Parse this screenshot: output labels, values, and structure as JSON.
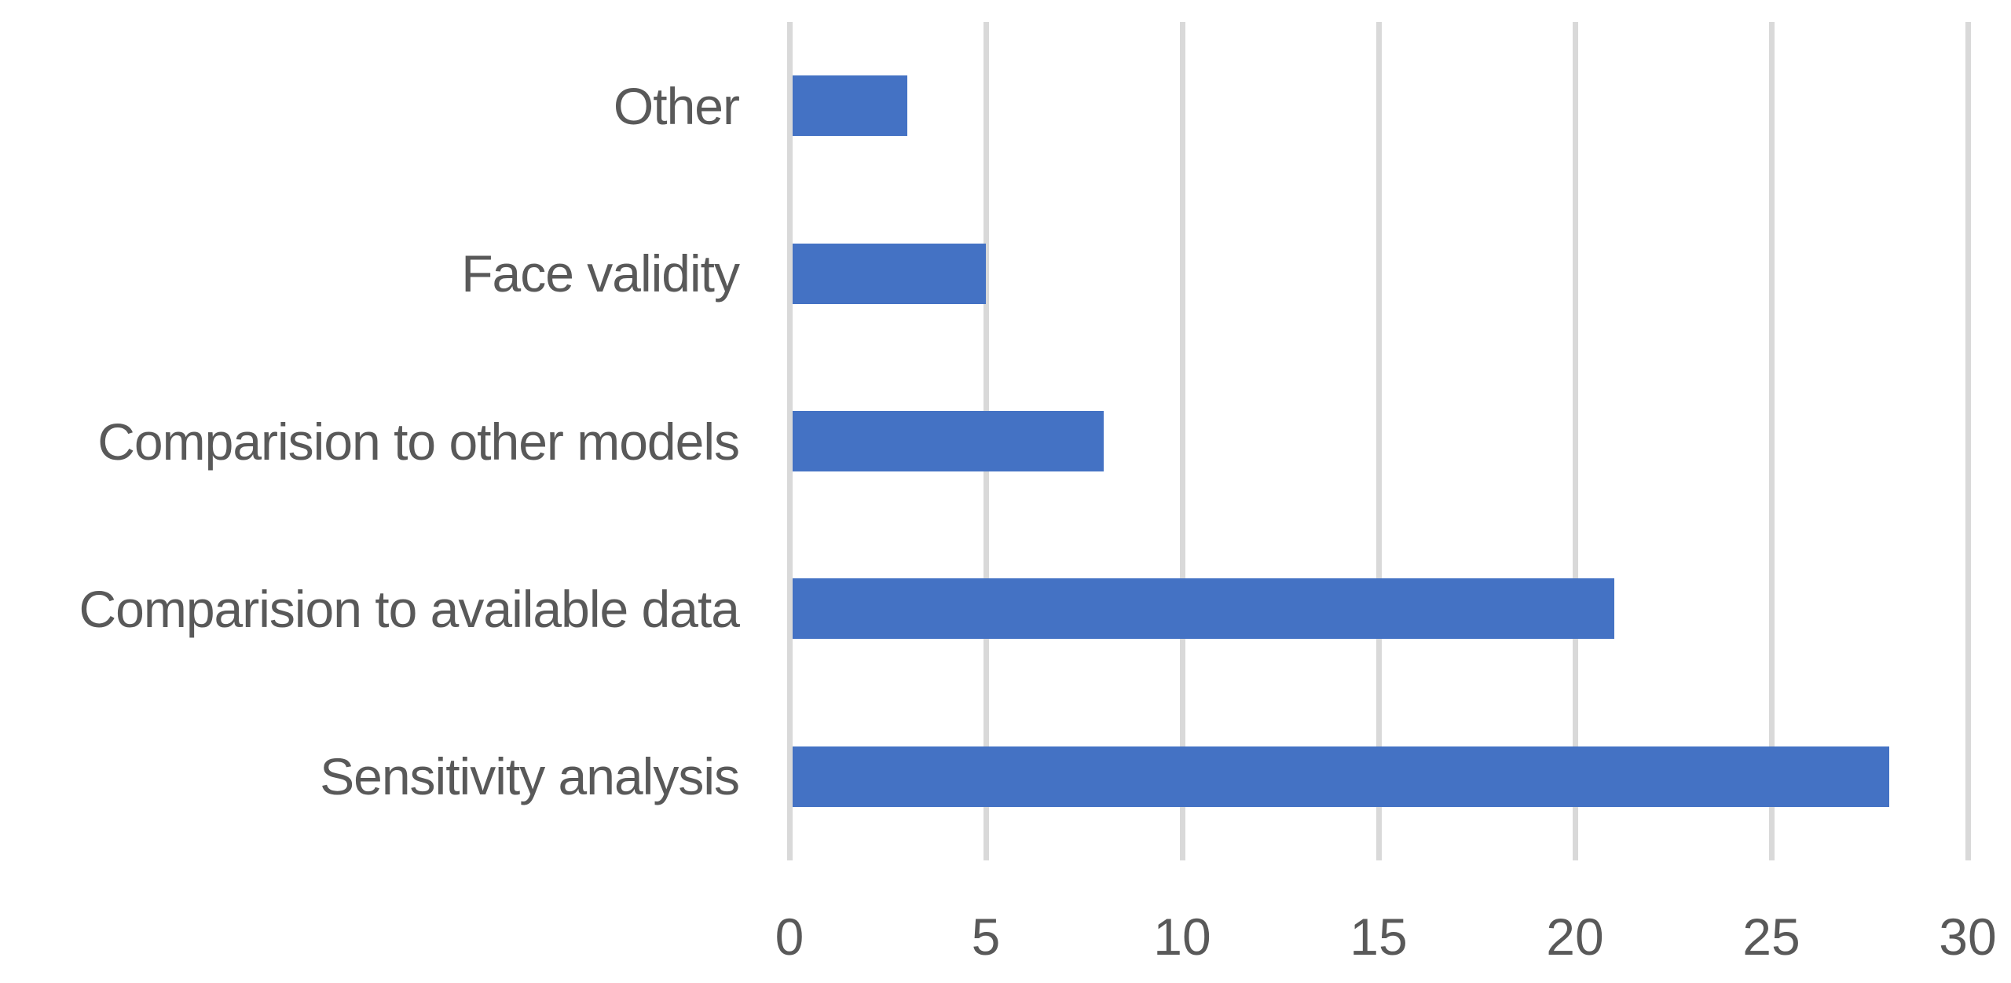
{
  "chart_data": {
    "type": "bar",
    "orientation": "horizontal",
    "title": "",
    "xlabel": "",
    "ylabel": "",
    "categories": [
      "Other",
      "Face validity",
      "Comparision to other models",
      "Comparision to available data",
      "Sensitivity analysis"
    ],
    "values": [
      3,
      5,
      8,
      21,
      28
    ],
    "xlim": [
      0,
      30
    ],
    "xticks": [
      0,
      5,
      10,
      15,
      20,
      25,
      30
    ],
    "grid": "vertical-gridlines-on",
    "legend": "none",
    "data_labels": "none",
    "colors": {
      "bar": "#4472C4",
      "gridline": "#D9D9D9",
      "axis_text": "#595959",
      "background": "#FFFFFF"
    }
  }
}
